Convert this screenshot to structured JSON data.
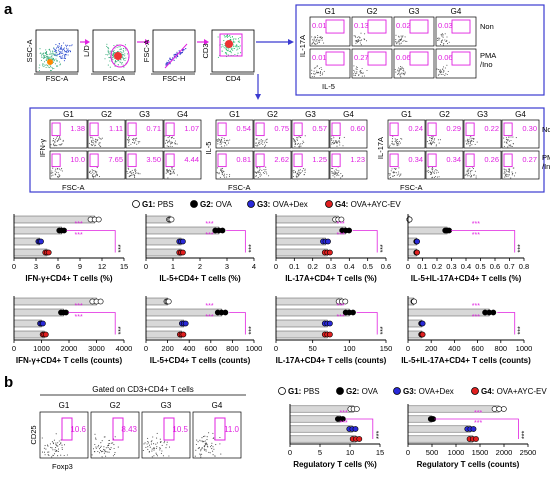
{
  "panel_labels": {
    "a": "a",
    "b": "b"
  },
  "gating": {
    "axes": [
      {
        "x": "FSC-A",
        "y": "SSC-A"
      },
      {
        "x": "FSC-A",
        "y": "L/D"
      },
      {
        "x": "FSC-H",
        "y": "FSC-A"
      },
      {
        "x": "CD4",
        "y": "CD3"
      }
    ]
  },
  "groups": [
    "G1",
    "G2",
    "G3",
    "G4"
  ],
  "conditions": {
    "non": "Non",
    "pma": "PMA",
    "ino": "/Ino"
  },
  "flow_blocks": [
    {
      "id": "il17a-il5",
      "xlabel": "IL-5",
      "ylabel": "IL-17A",
      "non": [
        "0.01",
        "0.13",
        "0.02",
        "0.03"
      ],
      "pma": [
        "0.01",
        "0.27",
        "0.06",
        "0.06"
      ]
    },
    {
      "id": "ifng",
      "xlabel": "FSC-A",
      "ylabel": "IFN-γ",
      "non": [
        "1.38",
        "1.11",
        "0.71",
        "1.07"
      ],
      "pma": [
        "10.0",
        "7.65",
        "3.50",
        "4.44"
      ]
    },
    {
      "id": "il5",
      "xlabel": "FSC-A",
      "ylabel": "IL-5",
      "non": [
        "0.54",
        "0.75",
        "0.57",
        "0.60"
      ],
      "pma": [
        "0.81",
        "2.62",
        "1.25",
        "1.23"
      ]
    },
    {
      "id": "il17a",
      "xlabel": "FSC-A",
      "ylabel": "IL-17A",
      "non": [
        "0.24",
        "0.29",
        "0.22",
        "0.30"
      ],
      "pma": [
        "0.34",
        "0.34",
        "0.26",
        "0.27"
      ]
    }
  ],
  "legend": [
    {
      "key": "G1:",
      "label": "PBS",
      "color": "#ffffff"
    },
    {
      "key": "G2:",
      "label": "OVA",
      "color": "#000000"
    },
    {
      "key": "G3:",
      "label": "OVA+Dex",
      "color": "#2a2ad8"
    },
    {
      "key": "G4:",
      "label": "OVA+AYC-EV",
      "color": "#e02020"
    }
  ],
  "significance": {
    "stars": "***",
    "ns": "*"
  },
  "colors": {
    "box": "#3b3bd0",
    "magenta": "#e020e0",
    "arrow": "#e020e0",
    "blue": "#2a2ad8",
    "red": "#e02020"
  },
  "chart_data": [
    {
      "type": "bar",
      "id": "ifng-pct",
      "categories": [
        "G1",
        "G2",
        "G3",
        "G4"
      ],
      "values": [
        11,
        6.5,
        3.5,
        4.5
      ],
      "xlim": [
        0,
        15
      ],
      "ticks": [
        "0",
        "3",
        "6",
        "9",
        "12",
        "15"
      ],
      "xlabel": "IFN-γ+CD4+ T cells (%)"
    },
    {
      "type": "bar",
      "id": "il5-pct",
      "categories": [
        "G1",
        "G2",
        "G3",
        "G4"
      ],
      "values": [
        0.9,
        2.7,
        1.3,
        1.3
      ],
      "xlim": [
        0,
        4
      ],
      "ticks": [
        "0",
        "1",
        "2",
        "3",
        "4"
      ],
      "xlabel": "IL-5+CD4+ T cells (%)"
    },
    {
      "type": "bar",
      "id": "il17a-pct",
      "categories": [
        "G1",
        "G2",
        "G3",
        "G4"
      ],
      "values": [
        0.34,
        0.38,
        0.27,
        0.28
      ],
      "xlim": [
        0,
        0.6
      ],
      "ticks": [
        "0",
        "0.1",
        "0.2",
        "0.3",
        "0.4",
        "0.5",
        "0.6"
      ],
      "xlabel": "IL-17A+CD4+ T cells (%)"
    },
    {
      "type": "bar",
      "id": "il5il17a-pct",
      "categories": [
        "G1",
        "G2",
        "G3",
        "G4"
      ],
      "values": [
        0.01,
        0.27,
        0.06,
        0.06
      ],
      "xlim": [
        0,
        0.8
      ],
      "ticks": [
        "0",
        "0.1",
        "0.2",
        "0.3",
        "0.4",
        "0.5",
        "0.6",
        "0.7",
        "0.8"
      ],
      "xlabel": "IL-5+IL-17A+CD4+ T cells (%)"
    },
    {
      "type": "bar",
      "id": "ifng-cnt",
      "categories": [
        "G1",
        "G2",
        "G3",
        "G4"
      ],
      "values": [
        3000,
        1800,
        1000,
        1100
      ],
      "xlim": [
        0,
        4000
      ],
      "ticks": [
        "0",
        "1000",
        "2000",
        "3000",
        "4000"
      ],
      "xlabel": "IFN-γ+CD4+ T cells (counts)"
    },
    {
      "type": "bar",
      "id": "il5-cnt",
      "categories": [
        "G1",
        "G2",
        "G3",
        "G4"
      ],
      "values": [
        200,
        700,
        350,
        330
      ],
      "xlim": [
        0,
        1000
      ],
      "ticks": [
        "0",
        "200",
        "400",
        "600",
        "800",
        "1000"
      ],
      "xlabel": "IL-5+CD4+ T cells (counts)"
    },
    {
      "type": "bar",
      "id": "il17a-cnt",
      "categories": [
        "G1",
        "G2",
        "G3",
        "G4"
      ],
      "values": [
        90,
        100,
        70,
        70
      ],
      "xlim": [
        0,
        150
      ],
      "ticks": [
        "0",
        "50",
        "100",
        "150"
      ],
      "xlabel": "IL-17A+CD4+ T cells (counts)"
    },
    {
      "type": "bar",
      "id": "il5il17a-cnt",
      "categories": [
        "G1",
        "G2",
        "G3",
        "G4"
      ],
      "values": [
        50,
        700,
        120,
        120
      ],
      "xlim": [
        0,
        1000
      ],
      "ticks": [
        "0",
        "200",
        "400",
        "600",
        "800",
        "1000"
      ],
      "xlabel": "IL-5+IL-17A+CD4+ T cells (counts)"
    },
    {
      "type": "bar",
      "id": "treg-pct",
      "categories": [
        "G1",
        "G2",
        "G3",
        "G4"
      ],
      "values": [
        10.6,
        8.4,
        10.4,
        11.0
      ],
      "xlim": [
        0,
        15
      ],
      "ticks": [
        "0",
        "5",
        "10",
        "15"
      ],
      "xlabel": "Regulatory T cells (%)"
    },
    {
      "type": "bar",
      "id": "treg-cnt",
      "categories": [
        "G1",
        "G2",
        "G3",
        "G4"
      ],
      "values": [
        1900,
        500,
        1300,
        1350
      ],
      "xlim": [
        0,
        2500
      ],
      "ticks": [
        "0",
        "500",
        "1000",
        "1500",
        "2000",
        "2500"
      ],
      "xlabel": "Regulatory T cells (counts)"
    }
  ],
  "panel_b": {
    "title": "Gated on CD3+CD4+ T cells",
    "xlabel": "Foxp3",
    "ylabel": "CD25",
    "values": [
      "10.6",
      "8.43",
      "10.5",
      "11.0"
    ]
  }
}
